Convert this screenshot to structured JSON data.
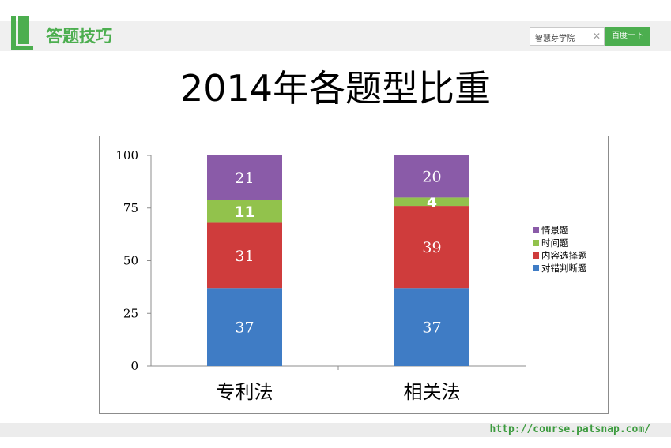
{
  "header": {
    "section_title": "答题技巧",
    "search_value": "智慧芽学院",
    "search_button": "百度一下",
    "accent_color": "#4cae4f"
  },
  "title": "2014年各题型比重",
  "footer": {
    "url": "http://course.patsnap.com/"
  },
  "chart_data": {
    "type": "bar",
    "stacked": true,
    "categories": [
      "专利法",
      "相关法"
    ],
    "ylim": [
      0,
      100
    ],
    "yticks": [
      0,
      25,
      50,
      75,
      100
    ],
    "legend_position": "right",
    "series": [
      {
        "name": "对错判断题",
        "color": "#3f7cc5",
        "values": [
          37,
          37
        ]
      },
      {
        "name": "内容选择题",
        "color": "#cf3c3c",
        "values": [
          31,
          39
        ]
      },
      {
        "name": "时间题",
        "color": "#92c24c",
        "values": [
          11,
          4
        ]
      },
      {
        "name": "情景题",
        "color": "#8a5ba8",
        "values": [
          21,
          20
        ]
      }
    ]
  }
}
